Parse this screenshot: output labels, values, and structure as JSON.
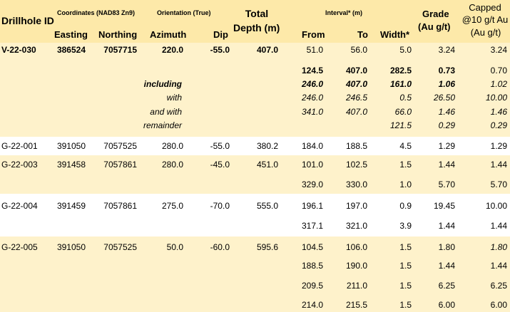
{
  "colors": {
    "header_bg": "#fde9a9",
    "band_bg": "#fef2cb",
    "white_bg": "#ffffff"
  },
  "header": {
    "drillhole_id": "Drillhole ID",
    "coordinates_group": "Coordinates (NAD83 Zn9)",
    "easting": "Easting",
    "northing": "Northing",
    "orientation_group": "Orientation (True)",
    "azimuth": "Azimuth",
    "dip": "Dip",
    "total_depth_line1": "Total",
    "total_depth_line2": "Depth (m)",
    "interval_group": "Interval* (m)",
    "from": "From",
    "to": "To",
    "width": "Width*",
    "grade_line1": "Grade",
    "grade_line2": "(Au g/t)",
    "capped_line1": "Capped",
    "capped_line2": "@10 g/t Au",
    "capped_line3": "(Au g/t)"
  },
  "rows": [
    {
      "id": "V-22-030",
      "easting": "386524",
      "northing": "7057715",
      "azimuth": "220.0",
      "dip": "-55.0",
      "depth": "407.0",
      "from": "51.0",
      "to": "56.0",
      "width": "5.0",
      "grade": "3.24",
      "capped": "3.24"
    },
    {
      "label": "",
      "from": "124.5",
      "to": "407.0",
      "width": "282.5",
      "grade": "0.73",
      "capped": "0.70"
    },
    {
      "label": "including",
      "from": "246.0",
      "to": "407.0",
      "width": "161.0",
      "grade": "1.06",
      "capped": "1.02"
    },
    {
      "label": "with",
      "from": "246.0",
      "to": "246.5",
      "width": "0.5",
      "grade": "26.50",
      "capped": "10.00"
    },
    {
      "label": "and with",
      "from": "341.0",
      "to": "407.0",
      "width": "66.0",
      "grade": "1.46",
      "capped": "1.46"
    },
    {
      "label": "remainder",
      "from": "",
      "to": "",
      "width": "121.5",
      "grade": "0.29",
      "capped": "0.29"
    },
    {
      "id": "G-22-001",
      "easting": "391050",
      "northing": "7057525",
      "azimuth": "280.0",
      "dip": "-55.0",
      "depth": "380.2",
      "from": "184.0",
      "to": "188.5",
      "width": "4.5",
      "grade": "1.29",
      "capped": "1.29"
    },
    {
      "id": "G-22-003",
      "easting": "391458",
      "northing": "7057861",
      "azimuth": "280.0",
      "dip": "-45.0",
      "depth": "451.0",
      "from": "101.0",
      "to": "102.5",
      "width": "1.5",
      "grade": "1.44",
      "capped": "1.44"
    },
    {
      "from": "329.0",
      "to": "330.0",
      "width": "1.0",
      "grade": "5.70",
      "capped": "5.70"
    },
    {
      "id": "G-22-004",
      "easting": "391459",
      "northing": "7057861",
      "azimuth": "275.0",
      "dip": "-70.0",
      "depth": "555.0",
      "from": "196.1",
      "to": "197.0",
      "width": "0.9",
      "grade": "19.45",
      "capped": "10.00"
    },
    {
      "from": "317.1",
      "to": "321.0",
      "width": "3.9",
      "grade": "1.44",
      "capped": "1.44"
    },
    {
      "id": "G-22-005",
      "easting": "391050",
      "northing": "7057525",
      "azimuth": "50.0",
      "dip": "-60.0",
      "depth": "595.6",
      "from": "104.5",
      "to": "106.0",
      "width": "1.5",
      "grade": "1.80",
      "capped": "1.80"
    },
    {
      "from": "188.5",
      "to": "190.0",
      "width": "1.5",
      "grade": "1.44",
      "capped": "1.44"
    },
    {
      "from": "209.5",
      "to": "211.0",
      "width": "1.5",
      "grade": "6.25",
      "capped": "6.25"
    },
    {
      "from": "214.0",
      "to": "215.5",
      "width": "1.5",
      "grade": "6.00",
      "capped": "6.00"
    }
  ]
}
